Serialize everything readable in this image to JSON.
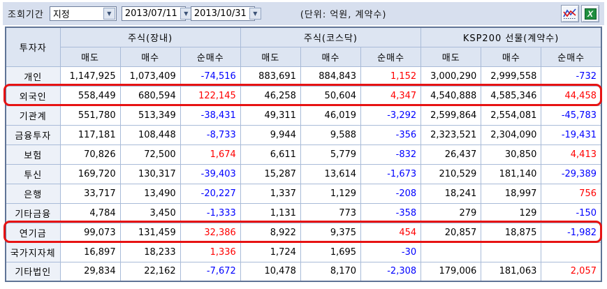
{
  "toolbar": {
    "period_label": "조회기간",
    "period_type": "지정",
    "date_from": "2013/07/11",
    "date_to": "2013/10/31",
    "unit_label": "(단위: 억원, 계약수)",
    "arrow_glyph": "▼",
    "excel_glyph": "X"
  },
  "colors": {
    "positive_value": "#ff0000",
    "negative_value": "#0000ff",
    "highlight_border": "#e71313",
    "header_bg": "#dde5f2",
    "toolbar_bg": "#d7dfee"
  },
  "table": {
    "corner_header": "투자자",
    "groups": [
      {
        "label": "주식(장내)"
      },
      {
        "label": "주식(코스닥)"
      },
      {
        "label": "KSP200 선물(계약수)"
      }
    ],
    "sub_headers": [
      "매도",
      "매수",
      "순매수"
    ],
    "rows": [
      {
        "label": "개인",
        "highlighted": false,
        "values": [
          "1,147,925",
          "1,073,409",
          "-74,516",
          "883,691",
          "884,843",
          "1,152",
          "3,000,290",
          "2,999,558",
          "-732"
        ]
      },
      {
        "label": "외국인",
        "highlighted": true,
        "values": [
          "558,449",
          "680,594",
          "122,145",
          "46,258",
          "50,604",
          "4,347",
          "4,540,888",
          "4,585,346",
          "44,458"
        ]
      },
      {
        "label": "기관계",
        "highlighted": false,
        "values": [
          "551,780",
          "513,349",
          "-38,431",
          "49,311",
          "46,019",
          "-3,292",
          "2,599,864",
          "2,554,081",
          "-45,783"
        ]
      },
      {
        "label": "금융투자",
        "highlighted": false,
        "values": [
          "117,181",
          "108,448",
          "-8,733",
          "9,944",
          "9,588",
          "-356",
          "2,323,521",
          "2,304,090",
          "-19,431"
        ]
      },
      {
        "label": "보험",
        "highlighted": false,
        "values": [
          "70,826",
          "72,500",
          "1,674",
          "6,611",
          "5,779",
          "-832",
          "26,437",
          "30,850",
          "4,413"
        ]
      },
      {
        "label": "투신",
        "highlighted": false,
        "values": [
          "169,720",
          "130,317",
          "-39,403",
          "15,287",
          "13,614",
          "-1,673",
          "210,529",
          "181,140",
          "-29,389"
        ]
      },
      {
        "label": "은행",
        "highlighted": false,
        "values": [
          "33,717",
          "13,490",
          "-20,227",
          "1,337",
          "1,129",
          "-208",
          "18,241",
          "18,997",
          "756"
        ]
      },
      {
        "label": "기타금융",
        "highlighted": false,
        "values": [
          "4,784",
          "3,450",
          "-1,333",
          "1,131",
          "773",
          "-358",
          "279",
          "129",
          "-150"
        ]
      },
      {
        "label": "연기금",
        "highlighted": true,
        "values": [
          "99,073",
          "131,459",
          "32,386",
          "8,922",
          "9,375",
          "454",
          "20,857",
          "18,875",
          "-1,982"
        ]
      },
      {
        "label": "국가지자체",
        "highlighted": false,
        "values": [
          "16,897",
          "18,233",
          "1,336",
          "1,724",
          "1,695",
          "-30",
          "",
          "",
          ""
        ]
      },
      {
        "label": "기타법인",
        "highlighted": false,
        "values": [
          "29,834",
          "22,162",
          "-7,672",
          "10,478",
          "8,170",
          "-2,308",
          "179,006",
          "181,063",
          "2,057"
        ]
      }
    ]
  }
}
